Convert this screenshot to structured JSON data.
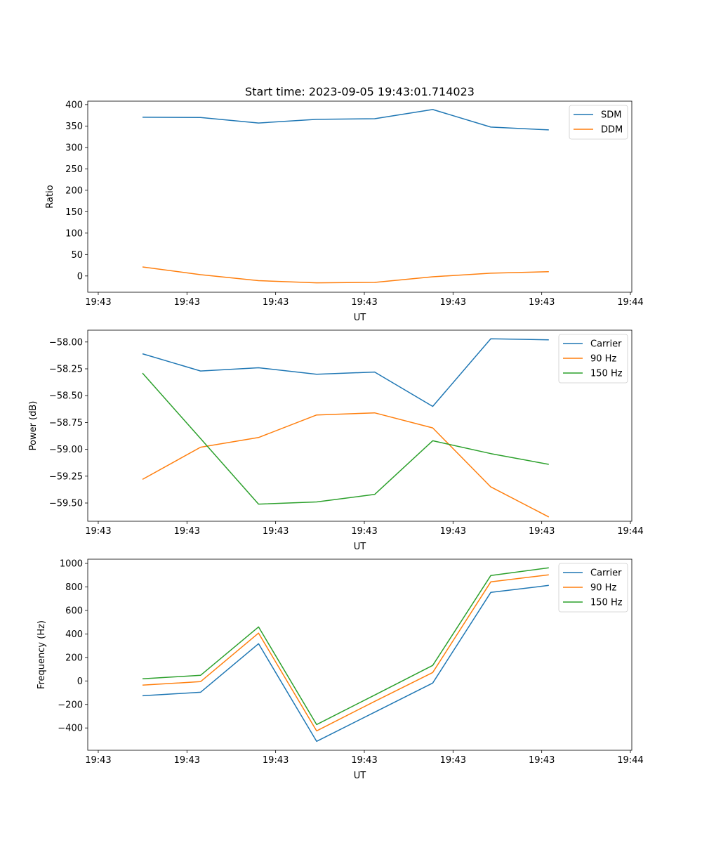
{
  "chart_data": [
    {
      "type": "line",
      "title": "Start time: 2023-09-05 19:43:01.714023",
      "xlabel": "UT",
      "ylabel": "Ratio",
      "x": [
        0,
        1,
        2,
        3,
        4,
        5,
        6,
        7
      ],
      "xlim": [
        -0.943,
        8.43
      ],
      "xticks": [
        -0.762,
        0.766,
        2.294,
        3.822,
        5.35,
        6.878,
        8.406
      ],
      "xticklabels": [
        "19:43",
        "19:43",
        "19:43",
        "19:43",
        "19:43",
        "19:43",
        "19:44"
      ],
      "ylim": [
        -38,
        408
      ],
      "yticks": [
        0,
        50,
        100,
        150,
        200,
        250,
        300,
        350,
        400
      ],
      "yticklabels": [
        "0",
        "50",
        "100",
        "150",
        "200",
        "250",
        "300",
        "350",
        "400"
      ],
      "legend": "top-right",
      "series": [
        {
          "name": "SDM",
          "color": "#1f77b4",
          "values": [
            370.5,
            370,
            357,
            365.5,
            367,
            388.5,
            347.5,
            341
          ]
        },
        {
          "name": "DDM",
          "color": "#ff7f0e",
          "values": [
            21,
            3,
            -11,
            -16,
            -15,
            -2,
            6.5,
            10
          ]
        }
      ]
    },
    {
      "type": "line",
      "title": "",
      "xlabel": "UT",
      "ylabel": "Power (dB)",
      "x": [
        0,
        1,
        2,
        3,
        4,
        5,
        6,
        7
      ],
      "xlim": [
        -0.943,
        8.43
      ],
      "xticks": [
        -0.762,
        0.766,
        2.294,
        3.822,
        5.35,
        6.878,
        8.406
      ],
      "xticklabels": [
        "19:43",
        "19:43",
        "19:43",
        "19:43",
        "19:43",
        "19:43",
        "19:44"
      ],
      "ylim": [
        -59.67,
        -57.89
      ],
      "yticks": [
        -59.5,
        -59.25,
        -59.0,
        -58.75,
        -58.5,
        -58.25,
        -58.0
      ],
      "yticklabels": [
        "−59.50",
        "−59.25",
        "−59.00",
        "−58.75",
        "−58.50",
        "−58.25",
        "−58.00"
      ],
      "legend": "top-right",
      "series": [
        {
          "name": "Carrier",
          "color": "#1f77b4",
          "values": [
            -58.11,
            -58.27,
            -58.24,
            -58.3,
            -58.28,
            -58.6,
            -57.97,
            -57.98
          ]
        },
        {
          "name": "90 Hz",
          "color": "#ff7f0e",
          "values": [
            -59.28,
            -58.98,
            -58.89,
            -58.68,
            -58.66,
            -58.8,
            -59.35,
            -59.63
          ]
        },
        {
          "name": "150 Hz",
          "color": "#2ca02c",
          "values": [
            -58.29,
            -58.9,
            -59.51,
            -59.49,
            -59.42,
            -58.92,
            -59.04,
            -59.14
          ]
        }
      ]
    },
    {
      "type": "line",
      "title": "",
      "xlabel": "UT",
      "ylabel": "Frequency (Hz)",
      "x": [
        0,
        1,
        2,
        3,
        4,
        5,
        6,
        7
      ],
      "xlim": [
        -0.943,
        8.43
      ],
      "xticks": [
        -0.762,
        0.766,
        2.294,
        3.822,
        5.35,
        6.878,
        8.406
      ],
      "xticklabels": [
        "19:43",
        "19:43",
        "19:43",
        "19:43",
        "19:43",
        "19:43",
        "19:44"
      ],
      "ylim": [
        -590,
        1036
      ],
      "yticks": [
        -400,
        -200,
        0,
        200,
        400,
        600,
        800,
        1000
      ],
      "yticklabels": [
        "−400",
        "−200",
        "0",
        "200",
        "400",
        "600",
        "800",
        "1000"
      ],
      "legend": "top-right",
      "series": [
        {
          "name": "Carrier",
          "color": "#1f77b4",
          "values": [
            -126,
            -96,
            317,
            -514,
            -266,
            -18,
            753,
            813
          ]
        },
        {
          "name": "90 Hz",
          "color": "#ff7f0e",
          "values": [
            -36,
            -6,
            407,
            -425,
            -174,
            72,
            843,
            903
          ]
        },
        {
          "name": "150 Hz",
          "color": "#2ca02c",
          "values": [
            18,
            48,
            460,
            -371,
            -120,
            132,
            897,
            963
          ]
        }
      ]
    }
  ]
}
